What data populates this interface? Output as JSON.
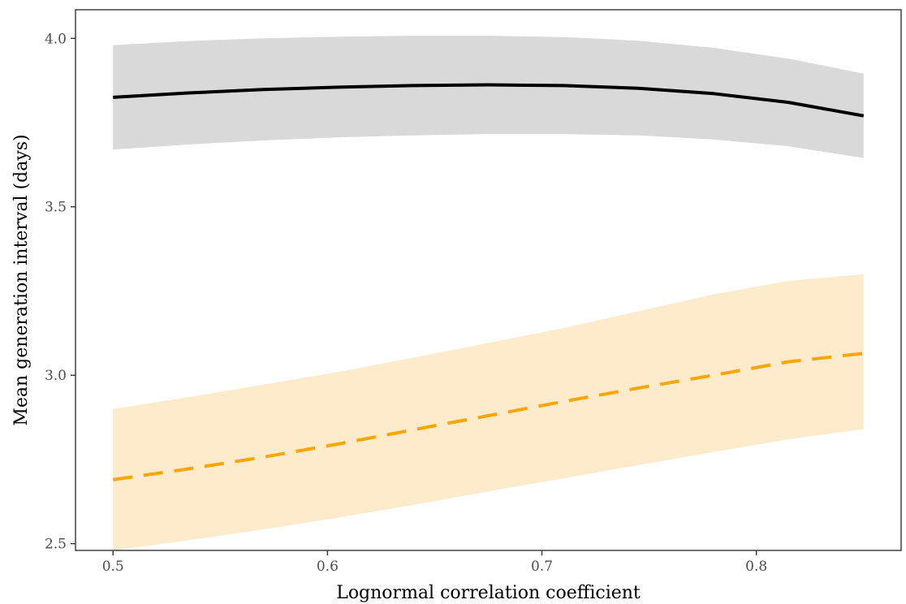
{
  "chart_data": {
    "type": "line",
    "xlabel": "Lognormal correlation coefficient",
    "ylabel": "Mean generation interval (days)",
    "xlim": [
      0.4825,
      0.8675
    ],
    "ylim": [
      2.48,
      4.085
    ],
    "xticks": [
      0.5,
      0.6,
      0.7,
      0.8
    ],
    "xtick_labels": [
      "0.5",
      "0.6",
      "0.7",
      "0.8"
    ],
    "yticks": [
      2.5,
      3.0,
      3.5,
      4.0
    ],
    "ytick_labels": [
      "2.5",
      "3.0",
      "3.5",
      "4.0"
    ],
    "grid": false,
    "legend": "none",
    "series": [
      {
        "line_style": "solid",
        "color": "#000000",
        "band_color": "#d9d9d9",
        "x": [
          0.5,
          0.535,
          0.57,
          0.605,
          0.64,
          0.675,
          0.71,
          0.745,
          0.78,
          0.815,
          0.85
        ],
        "y": [
          3.825,
          3.838,
          3.848,
          3.855,
          3.86,
          3.862,
          3.86,
          3.852,
          3.836,
          3.81,
          3.77
        ],
        "lower": [
          3.67,
          3.685,
          3.697,
          3.706,
          3.712,
          3.716,
          3.716,
          3.712,
          3.7,
          3.68,
          3.645
        ],
        "upper": [
          3.98,
          3.992,
          4.0,
          4.005,
          4.008,
          4.008,
          4.004,
          3.993,
          3.972,
          3.94,
          3.895
        ]
      },
      {
        "line_style": "dashed",
        "color": "#ffa500",
        "band_color": "#fdebcc",
        "x": [
          0.5,
          0.535,
          0.57,
          0.605,
          0.64,
          0.675,
          0.71,
          0.745,
          0.78,
          0.815,
          0.85
        ],
        "y": [
          2.69,
          2.722,
          2.757,
          2.796,
          2.838,
          2.88,
          2.922,
          2.962,
          3.0,
          3.04,
          3.065
        ],
        "lower": [
          2.48,
          2.51,
          2.542,
          2.577,
          2.615,
          2.655,
          2.694,
          2.733,
          2.772,
          2.81,
          2.84
        ],
        "upper": [
          2.9,
          2.935,
          2.972,
          3.01,
          3.052,
          3.096,
          3.14,
          3.19,
          3.24,
          3.28,
          3.3
        ]
      }
    ]
  }
}
